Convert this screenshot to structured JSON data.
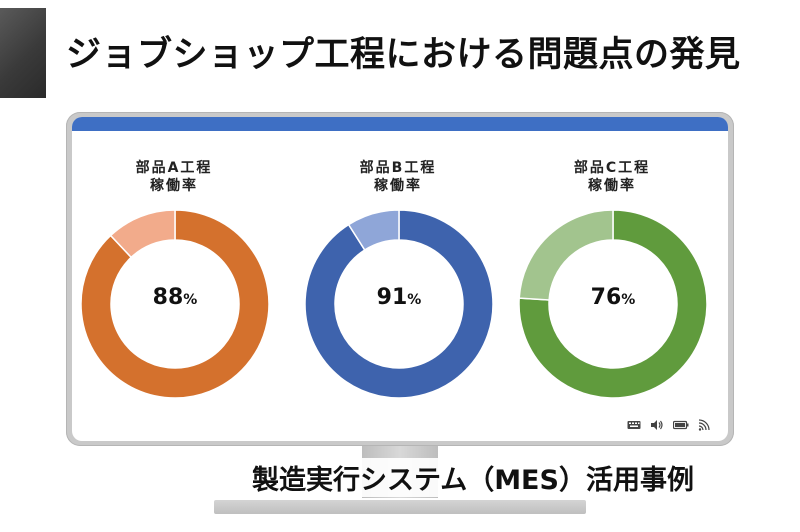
{
  "header": {
    "title": "ジョブショップ工程における問題点の発見"
  },
  "charts": [
    {
      "title_line1": "部品A工程",
      "title_line2": "稼働率",
      "value": 88,
      "value_text": "88",
      "unit": "%",
      "color_main": "#d4712d",
      "color_rest": "#f2ab8b"
    },
    {
      "title_line1": "部品B工程",
      "title_line2": "稼働率",
      "value": 91,
      "value_text": "91",
      "unit": "%",
      "color_main": "#3e63ad",
      "color_rest": "#8fa6d8"
    },
    {
      "title_line1": "部品C工程",
      "title_line2": "稼働率",
      "value": 76,
      "value_text": "76",
      "unit": "%",
      "color_main": "#609b3d",
      "color_rest": "#a2c48e"
    }
  ],
  "footer": {
    "caption": "製造実行システム（MES）活用事例"
  },
  "tray_icons": [
    "keyboard-icon",
    "speaker-icon",
    "battery-icon",
    "wifi-icon"
  ]
}
